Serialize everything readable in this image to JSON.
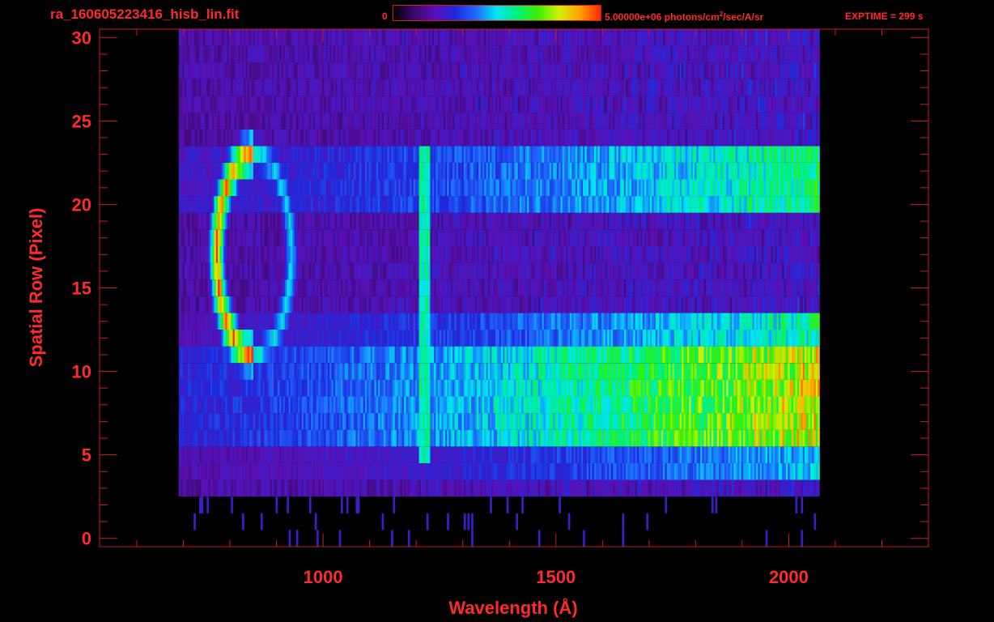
{
  "header": {
    "file_title": "ra_160605223416_hisb_lin.fit",
    "colorbar_min": "0",
    "colorbar_max_label": "5.00000e+06 photons/cm",
    "colorbar_max_sup": "2",
    "colorbar_max_tail": "/sec/A/sr",
    "exptime": "EXPTIME = 299 s"
  },
  "colors": {
    "axis": "#c81e1e",
    "text": "#ff2a2a",
    "background": "#000000",
    "colormap": [
      "#000000",
      "#3a0a6e",
      "#5a0fb4",
      "#1e2adc",
      "#1e6cff",
      "#00e6f0",
      "#00f078",
      "#3cf000",
      "#d2f000",
      "#ffa000",
      "#ff2800"
    ]
  },
  "chart_data": {
    "type": "heatmap",
    "title": "ra_160605223416_hisb_lin.fit",
    "xlabel": "Wavelength (Å)",
    "ylabel": "Spatial Row (Pixel)",
    "xlim": [
      520,
      2300
    ],
    "ylim": [
      -0.5,
      30.5
    ],
    "x_ticks": [
      1000,
      1500,
      2000
    ],
    "x_tick_labels": [
      "1000",
      "1500",
      "2000"
    ],
    "y_ticks": [
      0,
      5,
      10,
      15,
      20,
      25,
      30
    ],
    "y_tick_labels": [
      "0",
      "5",
      "10",
      "15",
      "20",
      "25",
      "30"
    ],
    "colorbar": {
      "min": 0,
      "max": 5000000,
      "unit": "photons/cm^2/sec/A/sr"
    },
    "exptime_s": 299,
    "data_extent_x": [
      690,
      2065
    ],
    "bands": [
      {
        "rows": [
          6,
          11
        ],
        "x_range": [
          690,
          2065
        ],
        "intensity_start": 0.3,
        "intensity_end": 0.88
      },
      {
        "rows": [
          12,
          13
        ],
        "x_range": [
          690,
          2065
        ],
        "intensity_start": 0.22,
        "intensity_end": 0.62
      },
      {
        "rows": [
          20,
          23
        ],
        "x_range": [
          690,
          2065
        ],
        "intensity_start": 0.25,
        "intensity_end": 0.65
      },
      {
        "rows": [
          4,
          5
        ],
        "x_range": [
          690,
          2065
        ],
        "intensity_start": 0.18,
        "intensity_end": 0.5
      }
    ],
    "lyman_alpha_line": {
      "x": 1216,
      "rows": [
        5,
        23
      ],
      "intensity": 0.6
    },
    "ring_feature": {
      "center_x": 850,
      "center_y": 17,
      "radius_x": 80,
      "radius_y": 6,
      "peak_intensity": 1.0
    }
  }
}
